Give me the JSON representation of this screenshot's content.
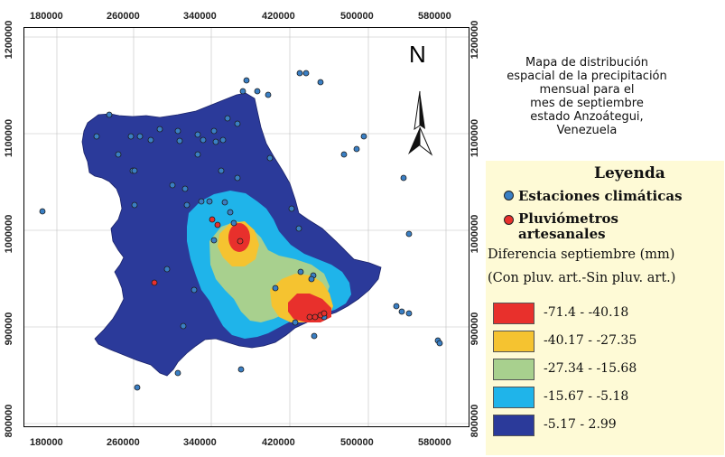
{
  "map": {
    "x_ticks": [
      "180000",
      "260000",
      "340000",
      "420000",
      "500000",
      "580000"
    ],
    "y_ticks": [
      "1200000",
      "1100000",
      "1000000",
      "900000",
      "800000"
    ],
    "north_label": "N"
  },
  "title_lines": [
    "Mapa de distribución",
    "espacial de la precipitación",
    "mensual para el",
    "mes de septiembre",
    "estado Anzoátegui,",
    "Venezuela"
  ],
  "legend": {
    "title": "Leyenda",
    "stations_label": "Estaciones climáticas",
    "rain_gauges_label_1": "Pluviómetros",
    "rain_gauges_label_2": "artesanales",
    "variable_label": "Diferencia septiembre (mm)",
    "variable_sub": "(Con pluv. art.-Sin pluv. art.)",
    "classes": [
      {
        "label": "-71.4 - -40.18",
        "color": "#e8302c"
      },
      {
        "label": "-40.17 - -27.35",
        "color": "#f5c330"
      },
      {
        "label": "-27.34 - -15.68",
        "color": "#a8d08e"
      },
      {
        "label": "-15.67 - -5.18",
        "color": "#1fb4ea"
      },
      {
        "label": "-5.17 - 2.99",
        "color": "#2b3a9a"
      }
    ],
    "station_color": "#3a7fc4",
    "gauge_color": "#e8302c"
  }
}
